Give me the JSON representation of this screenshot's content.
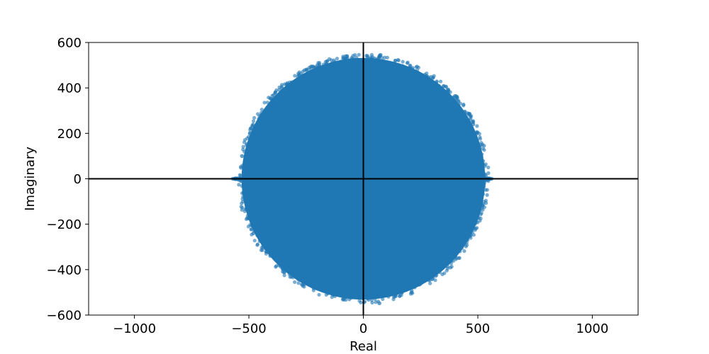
{
  "chart_data": {
    "type": "scatter",
    "title": "",
    "xlabel": "Real",
    "ylabel": "Imaginary",
    "xlim": [
      -1200,
      1200
    ],
    "ylim": [
      -600,
      600
    ],
    "xticks": [
      -1000,
      -500,
      0,
      500,
      1000
    ],
    "yticks": [
      -600,
      -400,
      -200,
      0,
      200,
      400,
      600
    ],
    "xtick_labels": [
      "−1000",
      "−500",
      "0",
      "500",
      "1000"
    ],
    "ytick_labels": [
      "−600",
      "−400",
      "−200",
      "0",
      "200",
      "400",
      "600"
    ],
    "reference_lines": [
      {
        "orientation": "horizontal",
        "value": 0
      },
      {
        "orientation": "vertical",
        "value": 0
      }
    ],
    "series": [
      {
        "description": "dense cloud of complex eigenvalue points filling a disk",
        "center": [
          0,
          0
        ],
        "radius": 540,
        "real_outliers": [
          -570,
          560
        ],
        "points": [
          [
            -570,
            0
          ],
          [
            560,
            0
          ],
          [
            75,
            545
          ],
          [
            70,
            -548
          ],
          [
            -380,
            320
          ],
          [
            380,
            -320
          ],
          [
            -530,
            100
          ],
          [
            520,
            -120
          ],
          [
            -200,
            500
          ],
          [
            210,
            -500
          ],
          [
            -480,
            -240
          ],
          [
            480,
            240
          ]
        ]
      }
    ],
    "colors": {
      "points": "#1f77b4",
      "axes_lines": "#000000",
      "frame": "#000000"
    },
    "grid": false,
    "legend": "none"
  }
}
